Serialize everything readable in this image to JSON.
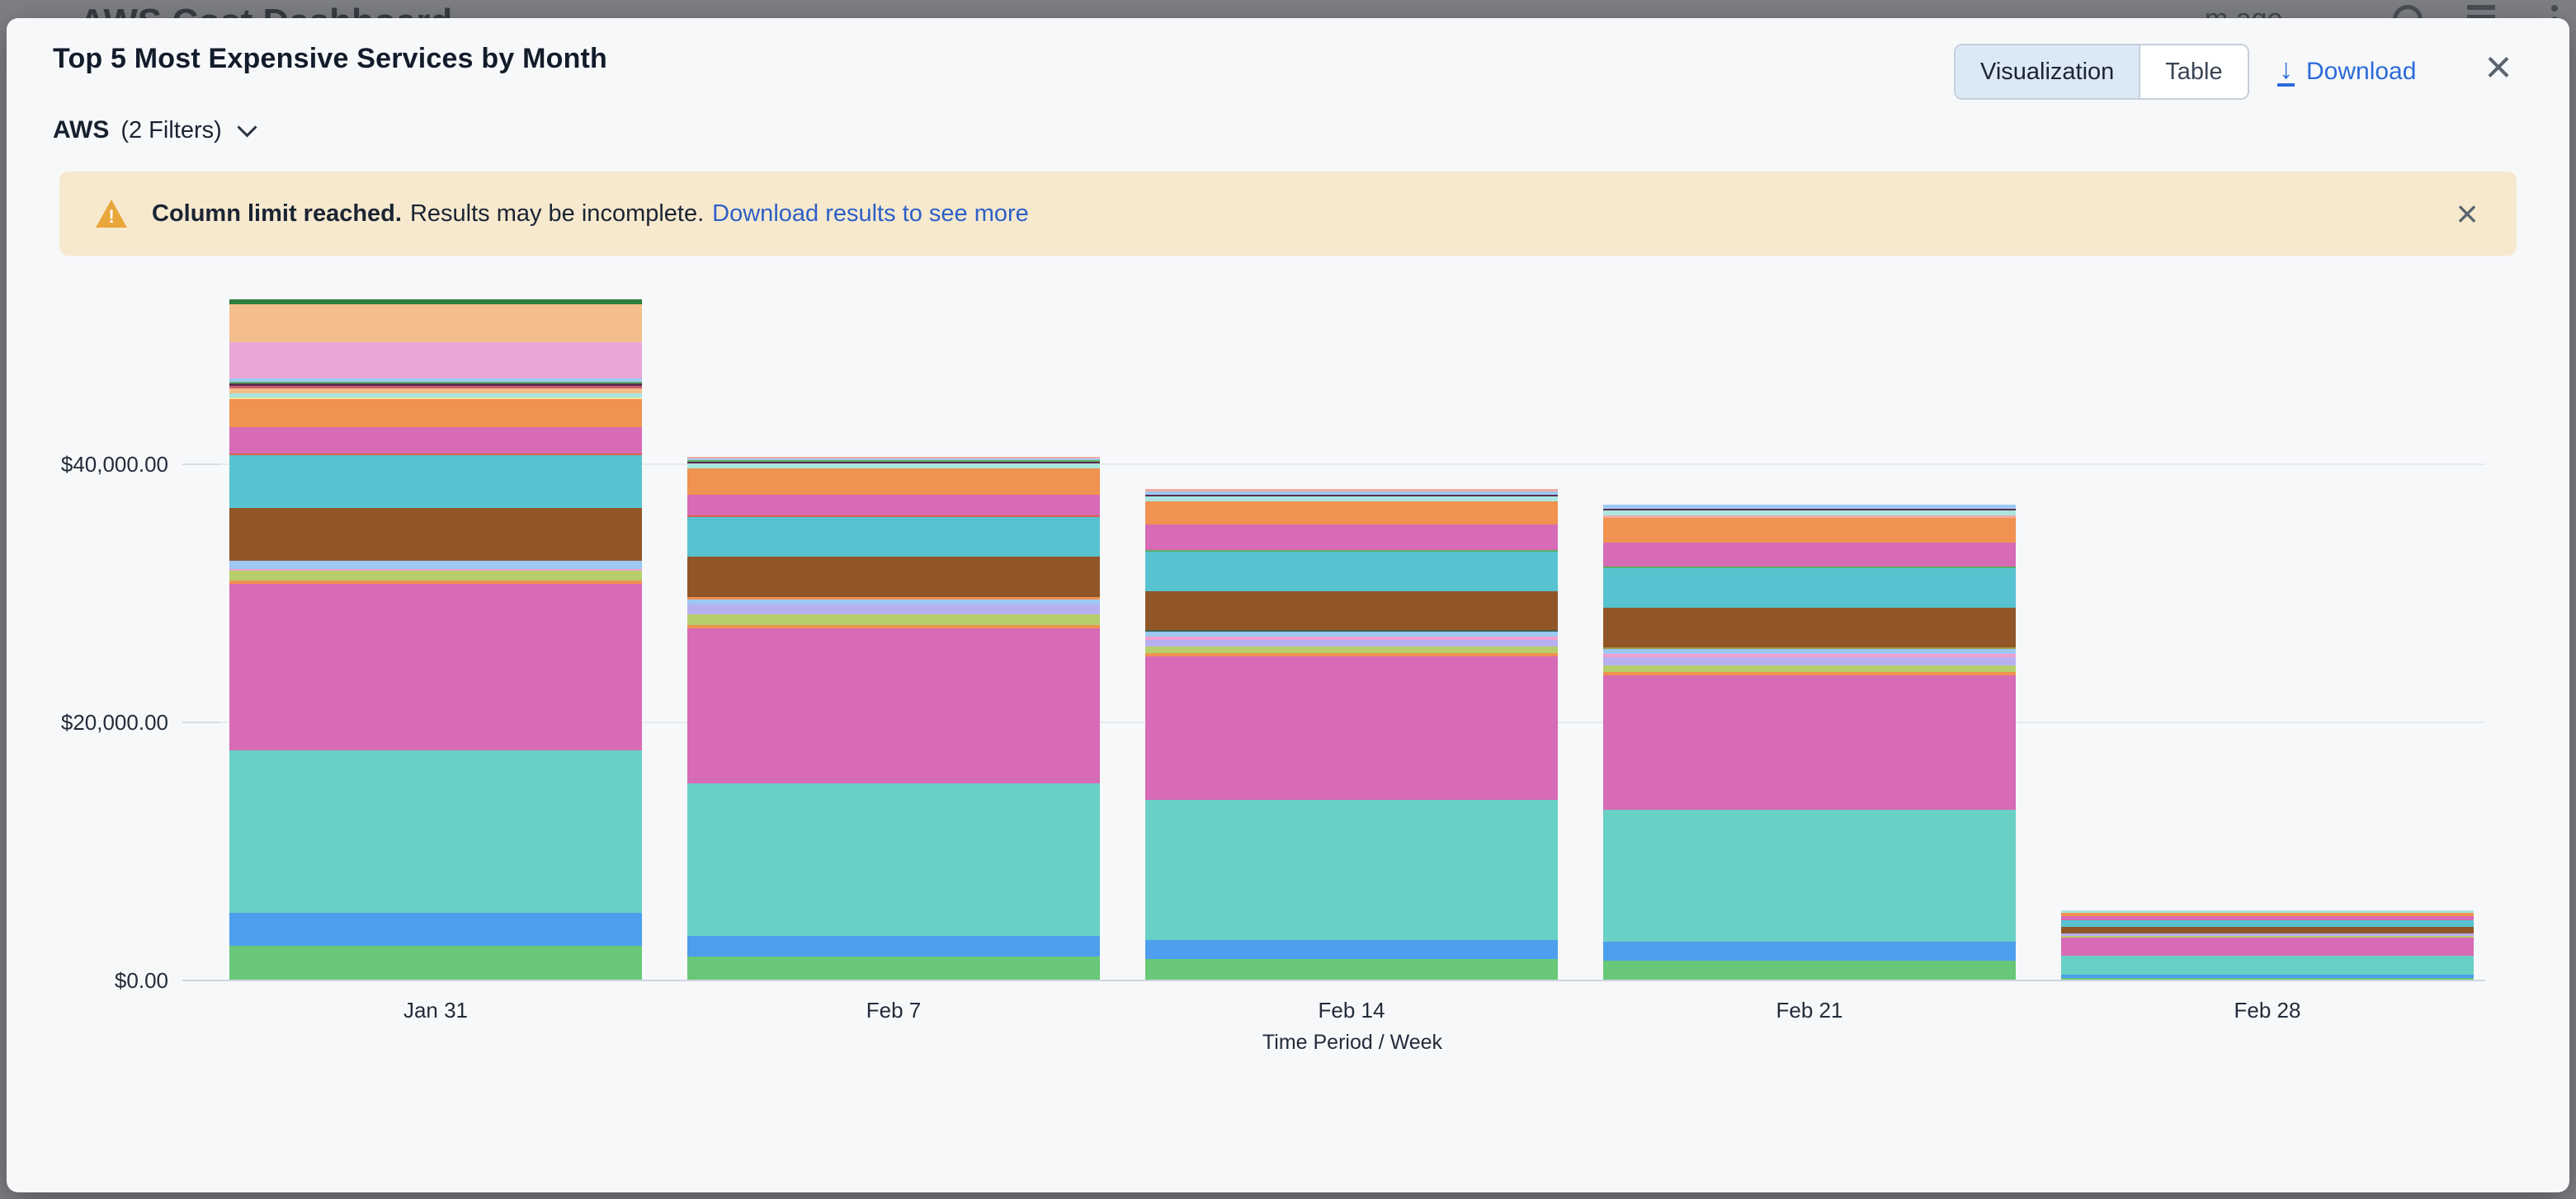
{
  "background_page": {
    "title": "AWS Cost Dashboard",
    "meta_text": "m ago"
  },
  "modal": {
    "title": "Top 5 Most Expensive Services by Month",
    "view_toggle": {
      "options": [
        "Visualization",
        "Table"
      ],
      "active": "Visualization"
    },
    "download_label": "Download",
    "download_icon_char": "↓",
    "close_char": "×",
    "filter": {
      "label": "AWS",
      "count_label": "(2 Filters)"
    },
    "banner": {
      "icon_char": "!",
      "bold": "Column limit reached.",
      "text": "Results may be incomplete.",
      "link": "Download results to see more",
      "close_char": "×",
      "bg_color": "#F6E9CE",
      "icon_color": "#E9A63A"
    },
    "accent_color": "#2C6BD9"
  },
  "chart_data": {
    "type": "bar",
    "subtype": "stacked",
    "title": "Top 5 Most Expensive Services by Month",
    "xlabel": "Time Period / Week",
    "ylabel": "",
    "ylim": [
      0,
      53000
    ],
    "grid": true,
    "legend": "none",
    "y_ticks": [
      {
        "value": 0,
        "label": "$0.00"
      },
      {
        "value": 20000,
        "label": "$20,000.00"
      },
      {
        "value": 40000,
        "label": "$40,000.00"
      }
    ],
    "categories": [
      "Jan 31",
      "Feb 7",
      "Feb 14",
      "Feb 21",
      "Feb 28"
    ],
    "palette": {
      "green": "#68C877",
      "blue": "#4D9FEE",
      "teal": "#69D0C5",
      "magenta": "#D76BB5",
      "orange": "#F09250",
      "yellowgreen": "#B6CF6C",
      "lavender": "#B8AFF1",
      "lightblue": "#9DC8F2",
      "pink": "#F29FD0",
      "brown": "#905628",
      "cyan": "#58C3D0",
      "red": "#D9604F",
      "palecyan": "#AAE5DF",
      "paleyellow": "#F0E3A1",
      "peach": "#F4BE8B",
      "maroon": "#5D2C50",
      "darkgreen": "#2F7D3C",
      "plum": "#E9A7D8",
      "salmon": "#F2ABA4",
      "darkslate": "#42604F",
      "olive": "#9C9B40",
      "greenline": "#5BAE63",
      "rose": "#C75F6B"
    },
    "bars": [
      {
        "label": "Jan 31",
        "total_estimate": 52700,
        "segments": [
          [
            "green",
            2620
          ],
          [
            "blue",
            2560
          ],
          [
            "teal",
            12590
          ],
          [
            "magenta",
            12910
          ],
          [
            "orange",
            260
          ],
          [
            "yellowgreen",
            770
          ],
          [
            "pink",
            130
          ],
          [
            "lightblue",
            640
          ],
          [
            "brown",
            4090
          ],
          [
            "cyan",
            4090
          ],
          [
            "red",
            130
          ],
          [
            "magenta",
            2040
          ],
          [
            "orange",
            2170
          ],
          [
            "paleyellow",
            130
          ],
          [
            "palecyan",
            320
          ],
          [
            "peach",
            380
          ],
          [
            "rose",
            190
          ],
          [
            "maroon",
            190
          ],
          [
            "greenline",
            130
          ],
          [
            "lightblue",
            260
          ],
          [
            "plum",
            2810
          ],
          [
            "peach",
            2940
          ],
          [
            "darkgreen",
            380
          ]
        ]
      },
      {
        "label": "Feb 7",
        "total_estimate": 40520,
        "segments": [
          [
            "green",
            1790
          ],
          [
            "blue",
            1600
          ],
          [
            "teal",
            11820
          ],
          [
            "magenta",
            12010
          ],
          [
            "orange",
            260
          ],
          [
            "yellowgreen",
            830
          ],
          [
            "lavender",
            770
          ],
          [
            "lightblue",
            380
          ],
          [
            "orange",
            190
          ],
          [
            "brown",
            3130
          ],
          [
            "cyan",
            3070
          ],
          [
            "red",
            130
          ],
          [
            "magenta",
            1600
          ],
          [
            "orange",
            2040
          ],
          [
            "palecyan",
            380
          ],
          [
            "maroon",
            130
          ],
          [
            "greenline",
            130
          ],
          [
            "lightblue",
            130
          ],
          [
            "salmon",
            130
          ]
        ]
      },
      {
        "label": "Feb 14",
        "total_estimate": 38030,
        "segments": [
          [
            "green",
            1600
          ],
          [
            "blue",
            1470
          ],
          [
            "teal",
            10860
          ],
          [
            "magenta",
            11120
          ],
          [
            "orange",
            260
          ],
          [
            "yellowgreen",
            510
          ],
          [
            "lavender",
            510
          ],
          [
            "pink",
            260
          ],
          [
            "lightblue",
            380
          ],
          [
            "darkslate",
            130
          ],
          [
            "brown",
            3000
          ],
          [
            "cyan",
            3070
          ],
          [
            "greenline",
            130
          ],
          [
            "magenta",
            1980
          ],
          [
            "orange",
            1790
          ],
          [
            "palecyan",
            380
          ],
          [
            "maroon",
            130
          ],
          [
            "lightblue",
            260
          ],
          [
            "salmon",
            190
          ]
        ]
      },
      {
        "label": "Feb 21",
        "total_estimate": 36820,
        "segments": [
          [
            "green",
            1470
          ],
          [
            "blue",
            1470
          ],
          [
            "teal",
            10220
          ],
          [
            "magenta",
            10420
          ],
          [
            "orange",
            260
          ],
          [
            "yellowgreen",
            510
          ],
          [
            "lavender",
            640
          ],
          [
            "pink",
            260
          ],
          [
            "lightblue",
            380
          ],
          [
            "olive",
            130
          ],
          [
            "brown",
            3070
          ],
          [
            "cyan",
            3070
          ],
          [
            "greenline",
            130
          ],
          [
            "magenta",
            1850
          ],
          [
            "orange",
            1920
          ],
          [
            "salmon",
            190
          ],
          [
            "palecyan",
            380
          ],
          [
            "maroon",
            130
          ],
          [
            "lightblue",
            320
          ]
        ]
      },
      {
        "label": "Feb 28",
        "total_estimate": 5380,
        "segments": [
          [
            "green",
            130
          ],
          [
            "blue",
            260
          ],
          [
            "teal",
            1470
          ],
          [
            "magenta",
            1410
          ],
          [
            "yellowgreen",
            130
          ],
          [
            "lavender",
            190
          ],
          [
            "brown",
            510
          ],
          [
            "cyan",
            510
          ],
          [
            "magenta",
            320
          ],
          [
            "orange",
            260
          ],
          [
            "palecyan",
            190
          ]
        ]
      }
    ]
  }
}
